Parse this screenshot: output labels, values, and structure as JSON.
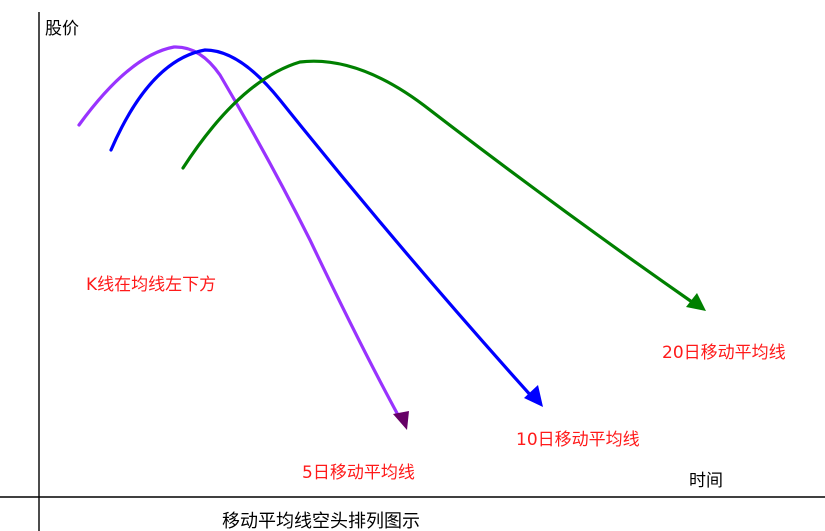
{
  "axes": {
    "y_label": "股价",
    "x_label": "时间"
  },
  "annotation": {
    "text": "K线在均线左下方"
  },
  "caption": "移动平均线空头排列图示",
  "lines": [
    {
      "name": "5日移动平均线",
      "color": "#9933ff",
      "arrow_color": "#660066"
    },
    {
      "name": "10日移动平均线",
      "color": "#0000ff",
      "arrow_color": "#0000ff"
    },
    {
      "name": "20日移动平均线",
      "color": "#008000",
      "arrow_color": "#008000"
    }
  ]
}
